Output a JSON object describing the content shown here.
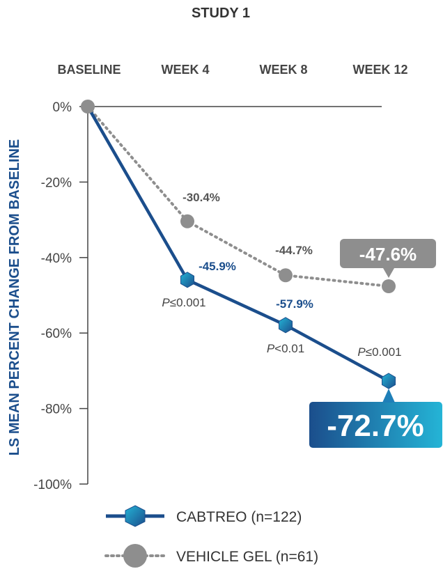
{
  "chart_data": {
    "type": "line",
    "title": "STUDY 1",
    "ylabel": "LS MEAN PERCENT CHANGE FROM BASELINE",
    "categories": [
      "BASELINE",
      "WEEK 4",
      "WEEK 8",
      "WEEK 12"
    ],
    "y_ticks": [
      "0%",
      "-20%",
      "-40%",
      "-60%",
      "-80%",
      "-100%"
    ],
    "y_tick_values": [
      0,
      -20,
      -40,
      -60,
      -80,
      -100
    ],
    "ylim": [
      -100,
      0
    ],
    "series": [
      {
        "name": "CABTREO (n=122)",
        "values": [
          0,
          -45.9,
          -57.9,
          -72.7
        ],
        "labels": [
          "",
          "-45.9%",
          "-57.9%",
          "-72.7%"
        ],
        "p_values": [
          "",
          "P≤0.001",
          "P<0.01",
          "P≤0.001"
        ],
        "color": "#1b4e8c",
        "style": "solid",
        "marker": "hexagon"
      },
      {
        "name": "VEHICLE GEL (n=61)",
        "values": [
          0,
          -30.4,
          -44.7,
          -47.6
        ],
        "labels": [
          "",
          "-30.4%",
          "-44.7%",
          "-47.6%"
        ],
        "color": "#8e8e8e",
        "style": "dotted",
        "marker": "circle"
      }
    ],
    "grid": false,
    "legend_position": "bottom"
  },
  "colors": {
    "brand_dark": "#1b4e8c",
    "brand_light": "#24b4d6",
    "gray": "#8e8e8e"
  }
}
